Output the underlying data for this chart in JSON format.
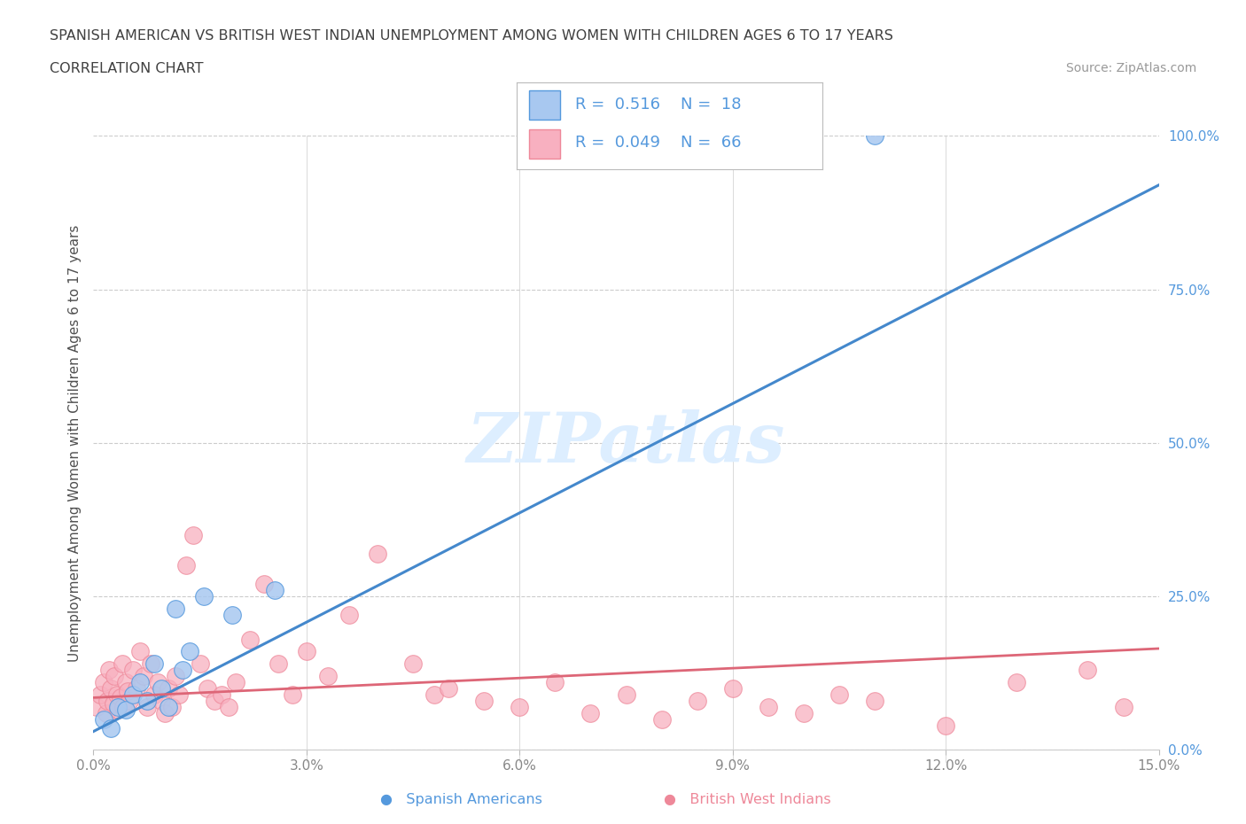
{
  "title1": "SPANISH AMERICAN VS BRITISH WEST INDIAN UNEMPLOYMENT AMONG WOMEN WITH CHILDREN AGES 6 TO 17 YEARS",
  "title2": "CORRELATION CHART",
  "source": "Source: ZipAtlas.com",
  "ylabel": "Unemployment Among Women with Children Ages 6 to 17 years",
  "xlim": [
    0.0,
    15.0
  ],
  "ylim": [
    0.0,
    100.0
  ],
  "xticks": [
    0.0,
    3.0,
    6.0,
    9.0,
    12.0,
    15.0
  ],
  "xtick_labels": [
    "0.0%",
    "3.0%",
    "6.0%",
    "9.0%",
    "12.0%",
    "15.0%"
  ],
  "yticks": [
    0.0,
    25.0,
    50.0,
    75.0,
    100.0
  ],
  "ytick_labels": [
    "0.0%",
    "25.0%",
    "50.0%",
    "75.0%",
    "100.0%"
  ],
  "blue_R": 0.516,
  "blue_N": 18,
  "pink_R": 0.049,
  "pink_N": 66,
  "blue_scatter_x": [
    0.15,
    0.25,
    0.35,
    0.45,
    0.55,
    0.65,
    0.75,
    0.85,
    0.95,
    1.05,
    1.15,
    1.25,
    1.35,
    1.55,
    1.95,
    2.55,
    8.5,
    11.0
  ],
  "blue_scatter_y": [
    5.0,
    3.5,
    7.0,
    6.5,
    9.0,
    11.0,
    8.0,
    14.0,
    10.0,
    7.0,
    23.0,
    13.0,
    16.0,
    25.0,
    22.0,
    26.0,
    96.0,
    100.0
  ],
  "pink_scatter_x": [
    0.05,
    0.1,
    0.15,
    0.18,
    0.2,
    0.22,
    0.25,
    0.28,
    0.3,
    0.33,
    0.35,
    0.38,
    0.4,
    0.42,
    0.45,
    0.48,
    0.5,
    0.55,
    0.6,
    0.65,
    0.7,
    0.75,
    0.8,
    0.85,
    0.9,
    0.95,
    1.0,
    1.05,
    1.1,
    1.15,
    1.2,
    1.3,
    1.4,
    1.5,
    1.6,
    1.7,
    1.8,
    1.9,
    2.0,
    2.2,
    2.4,
    2.6,
    2.8,
    3.0,
    3.3,
    3.6,
    4.0,
    4.5,
    4.8,
    5.0,
    5.5,
    6.0,
    6.5,
    7.0,
    7.5,
    8.0,
    8.5,
    9.0,
    9.5,
    10.0,
    10.5,
    11.0,
    12.0,
    13.0,
    14.0,
    14.5
  ],
  "pink_scatter_y": [
    7.0,
    9.0,
    11.0,
    6.0,
    8.0,
    13.0,
    10.0,
    7.5,
    12.0,
    9.0,
    6.5,
    8.5,
    14.0,
    7.0,
    11.0,
    9.5,
    8.0,
    13.0,
    10.0,
    16.0,
    12.0,
    7.0,
    14.0,
    9.0,
    11.0,
    8.0,
    6.0,
    10.0,
    7.0,
    12.0,
    9.0,
    30.0,
    35.0,
    14.0,
    10.0,
    8.0,
    9.0,
    7.0,
    11.0,
    18.0,
    27.0,
    14.0,
    9.0,
    16.0,
    12.0,
    22.0,
    32.0,
    14.0,
    9.0,
    10.0,
    8.0,
    7.0,
    11.0,
    6.0,
    9.0,
    5.0,
    8.0,
    10.0,
    7.0,
    6.0,
    9.0,
    8.0,
    4.0,
    11.0,
    13.0,
    7.0
  ],
  "blue_line_x": [
    0.0,
    15.0
  ],
  "blue_line_y": [
    3.0,
    92.0
  ],
  "pink_line_x": [
    0.0,
    15.0
  ],
  "pink_line_y": [
    8.5,
    16.5
  ],
  "blue_line_color": "#4488cc",
  "pink_line_color": "#dd6677",
  "blue_fill_color": "#a8c8f0",
  "blue_edge_color": "#5599dd",
  "pink_fill_color": "#f8b0c0",
  "pink_edge_color": "#ee8899",
  "watermark": "ZIPatlas",
  "watermark_color": "#ddeeff",
  "bg_color": "#ffffff",
  "grid_color": "#cccccc",
  "title_color": "#404040",
  "axis_label_color": "#505050",
  "tick_color": "#888888",
  "right_tick_color": "#5599dd"
}
